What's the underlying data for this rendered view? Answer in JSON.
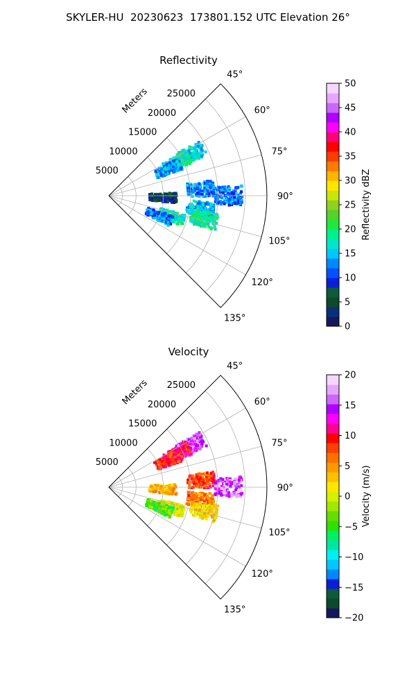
{
  "title": "SKYLER-HU  20230623  173801.152 UTC Elevation 26°",
  "colors": {
    "reflectivity_colormap": [
      "#14195c",
      "#0a2f7a",
      "#0b4a2a",
      "#0e5a3a",
      "#0b1fd9",
      "#0052ff",
      "#0088ff",
      "#00c8ff",
      "#00e6c8",
      "#00f08c",
      "#21e83a",
      "#56d22a",
      "#8fd11e",
      "#c8e60a",
      "#ffe600",
      "#ffb400",
      "#ff7a00",
      "#ff3c00",
      "#ff0000",
      "#ff0078",
      "#ff00ff",
      "#b000ff",
      "#cc66ff",
      "#e6a6ff",
      "#f6d6ff"
    ],
    "velocity_colormap": [
      "#14195c",
      "#0b4a2a",
      "#0e5a3a",
      "#0b1fd9",
      "#0088ff",
      "#00c8ff",
      "#00f0f0",
      "#00e6a0",
      "#00f060",
      "#30e000",
      "#66dd00",
      "#a0e800",
      "#d6f000",
      "#ffe600",
      "#ffc000",
      "#ff9a00",
      "#ff7000",
      "#ff4000",
      "#ff0000",
      "#ff0090",
      "#ff00ff",
      "#b000ff",
      "#cc66ff",
      "#e6a6ff",
      "#f6d6ff"
    ]
  },
  "chart_data": [
    {
      "type": "heatmap",
      "title": "Reflectivity",
      "projection": "polar sector (PPI)",
      "radial_label": "Meters",
      "range_ticks": [
        5000,
        10000,
        15000,
        20000,
        25000
      ],
      "range_max_m": 29000,
      "azimuth_ticks": [
        "45°",
        "60°",
        "75°",
        "90°",
        "105°",
        "120°",
        "135°"
      ],
      "azimuth_range_deg": [
        45,
        135
      ],
      "grid": true,
      "colorbar": {
        "label": "Reflectivity dBZ",
        "min": 0,
        "max": 50,
        "ticks": [
          0,
          5,
          10,
          15,
          20,
          25,
          30,
          35,
          40,
          45,
          50
        ]
      },
      "echo_regions": [
        {
          "az": 63,
          "range_m": 17000,
          "value": 16
        },
        {
          "az": 64,
          "range_m": 14000,
          "value": 18
        },
        {
          "az": 66,
          "range_m": 12000,
          "value": 14
        },
        {
          "az": 86,
          "range_m": 17000,
          "value": 13
        },
        {
          "az": 90,
          "range_m": 22000,
          "value": 12
        },
        {
          "az": 92,
          "range_m": 10000,
          "value": 5
        },
        {
          "az": 98,
          "range_m": 17000,
          "value": 15
        },
        {
          "az": 104,
          "range_m": 18000,
          "value": 18
        },
        {
          "az": 108,
          "range_m": 12000,
          "value": 18
        },
        {
          "az": 112,
          "range_m": 10000,
          "value": 12
        }
      ]
    },
    {
      "type": "heatmap",
      "title": "Velocity",
      "projection": "polar sector (PPI)",
      "radial_label": "Meters",
      "range_ticks": [
        5000,
        10000,
        15000,
        20000,
        25000
      ],
      "range_max_m": 29000,
      "azimuth_ticks": [
        "45°",
        "60°",
        "75°",
        "90°",
        "105°",
        "120°",
        "135°"
      ],
      "azimuth_range_deg": [
        45,
        135
      ],
      "grid": true,
      "colorbar": {
        "label": "Velocity (m/s)",
        "min": -20,
        "max": 20,
        "ticks": [
          -20,
          -15,
          -10,
          -5,
          0,
          5,
          10,
          15,
          20
        ]
      },
      "echo_regions": [
        {
          "az": 63,
          "range_m": 17000,
          "value": 15
        },
        {
          "az": 64,
          "range_m": 14000,
          "value": 10
        },
        {
          "az": 66,
          "range_m": 12000,
          "value": 9
        },
        {
          "az": 86,
          "range_m": 17000,
          "value": 8
        },
        {
          "az": 90,
          "range_m": 22000,
          "value": 16
        },
        {
          "az": 92,
          "range_m": 10000,
          "value": 4
        },
        {
          "az": 98,
          "range_m": 17000,
          "value": 6
        },
        {
          "az": 104,
          "range_m": 18000,
          "value": 2
        },
        {
          "az": 108,
          "range_m": 12000,
          "value": 0
        },
        {
          "az": 112,
          "range_m": 10000,
          "value": -4
        }
      ]
    }
  ]
}
